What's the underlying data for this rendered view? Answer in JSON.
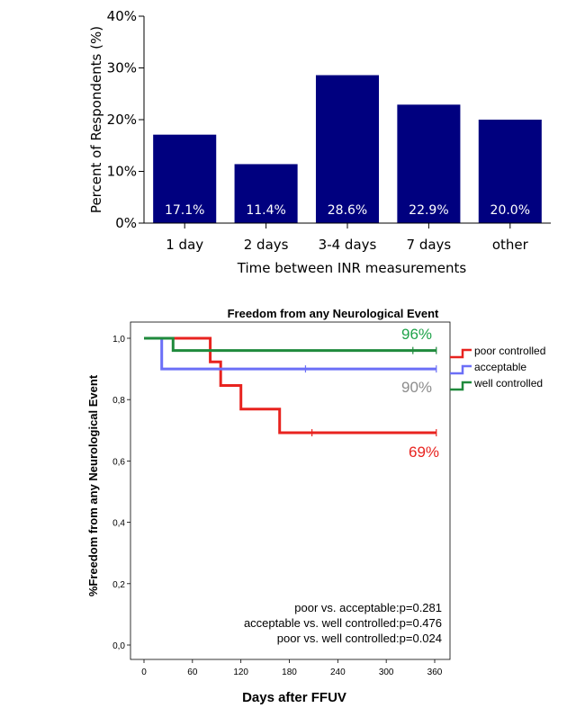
{
  "chart_data": [
    {
      "type": "bar",
      "title": "",
      "xlabel": "Time between INR measurements",
      "ylabel": "Percent of Respondents (%)",
      "categories": [
        "1 day",
        "2 days",
        "3-4 days",
        "7 days",
        "other"
      ],
      "values": [
        17.1,
        11.4,
        28.6,
        22.9,
        20.0
      ],
      "data_labels": [
        "17.1%",
        "11.4%",
        "28.6%",
        "22.9%",
        "20.0%"
      ],
      "ylim": [
        0,
        40
      ],
      "yticks": [
        0,
        10,
        20,
        30,
        40
      ],
      "ytick_labels": [
        "0%",
        "10%",
        "20%",
        "30%",
        "40%"
      ],
      "bar_color": "#00007f"
    },
    {
      "type": "line",
      "subtype": "kaplan-meier step",
      "title": "Freedom from any Neurological Event",
      "xlabel": "Days after FFUV",
      "ylabel": "%Freedom from any Neurological Event",
      "xlim": [
        0,
        365
      ],
      "ylim": [
        0,
        1
      ],
      "xticks": [
        0,
        60,
        120,
        180,
        240,
        300,
        360
      ],
      "xtick_labels": [
        "0",
        "60",
        "120",
        "180",
        "240",
        "300",
        "360"
      ],
      "yticks": [
        0,
        0.2,
        0.4,
        0.6,
        0.8,
        1.0
      ],
      "ytick_labels": [
        "0,0",
        "0,2",
        "0,4",
        "0,6",
        "0,8",
        "1,0"
      ],
      "series": [
        {
          "name": "poor controlled",
          "color": "#e8231f",
          "points": [
            [
              0,
              1.0
            ],
            [
              82,
              1.0
            ],
            [
              82,
              0.923
            ],
            [
              95,
              0.923
            ],
            [
              95,
              0.846
            ],
            [
              120,
              0.846
            ],
            [
              120,
              0.769
            ],
            [
              168,
              0.769
            ],
            [
              168,
              0.692
            ],
            [
              362,
              0.692
            ]
          ],
          "censor_x": [
            208,
            362
          ]
        },
        {
          "name": "acceptable",
          "color": "#6b6ff7",
          "points": [
            [
              0,
              1.0
            ],
            [
              22,
              1.0
            ],
            [
              22,
              0.9
            ],
            [
              362,
              0.9
            ]
          ],
          "censor_x": [
            200,
            362
          ]
        },
        {
          "name": "well controlled",
          "color": "#1f8a3c",
          "points": [
            [
              0,
              1.0
            ],
            [
              36,
              1.0
            ],
            [
              36,
              0.96
            ],
            [
              362,
              0.96
            ]
          ],
          "censor_x": [
            333,
            362
          ]
        }
      ],
      "annotations": [
        {
          "text": "96%",
          "color": "#1fa34a"
        },
        {
          "text": "90%",
          "color": "#8c8c8c"
        },
        {
          "text": "69%",
          "color": "#e8231f"
        }
      ],
      "p_values": [
        "poor vs. acceptable:p=0.281",
        "acceptable vs. well controlled:p=0.476",
        "poor vs. well controlled:p=0.024"
      ]
    }
  ]
}
